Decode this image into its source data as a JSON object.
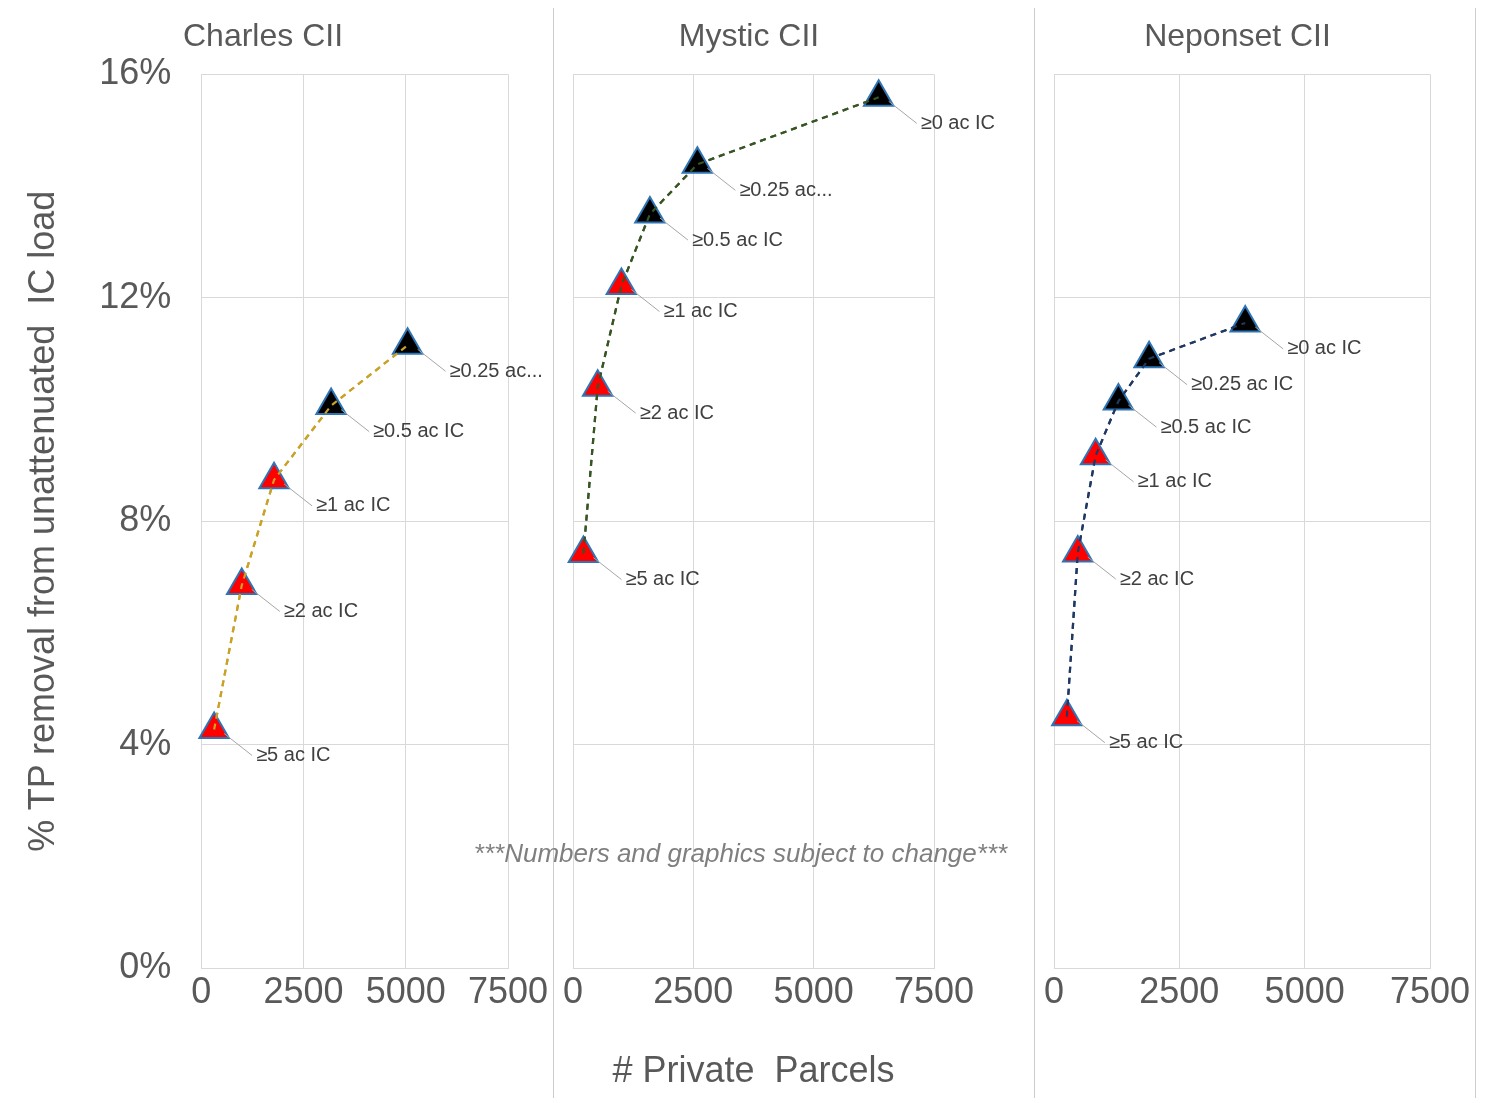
{
  "chart_data": [
    {
      "type": "line",
      "title": "Charles CII",
      "ylabel": "% TP removal from unattenuated  IC load",
      "xlim": [
        0,
        7500
      ],
      "xticks": [
        0,
        2500,
        5000,
        7500
      ],
      "ylim": [
        0,
        16
      ],
      "yticks": [
        {
          "value": 0,
          "label": "0%"
        },
        {
          "value": 4,
          "label": "4%"
        },
        {
          "value": 8,
          "label": "8%"
        },
        {
          "value": 12,
          "label": "12%"
        },
        {
          "value": 16,
          "label": "16%"
        }
      ],
      "grid": true,
      "legend": false,
      "marker": "triangle",
      "line_style": "dashed",
      "series": [
        {
          "color": "#c9a227",
          "colors": [
            "#ff0000",
            "#ff0000",
            "#ff0000",
            "#000000",
            "#000000"
          ],
          "x": [
            315,
            990,
            1780,
            3175,
            5045
          ],
          "values": [
            4.27,
            6.85,
            8.74,
            10.07,
            11.15
          ],
          "value_labels": [
            "≥5 ac IC",
            "≥2 ac IC",
            "≥1 ac IC",
            "≥0.5 ac IC",
            "≥0.25 ac..."
          ]
        }
      ]
    },
    {
      "type": "line",
      "title": "Mystic CII",
      "xlabel": "# Private  Parcels",
      "xlim": [
        0,
        7500
      ],
      "xticks": [
        0,
        2500,
        5000,
        7500
      ],
      "ylim": [
        0,
        16
      ],
      "yticks": [
        0,
        4,
        8,
        12,
        16
      ],
      "tick_labels": "x",
      "grid": true,
      "legend": false,
      "marker": "triangle",
      "line_style": "dashed",
      "annotations": [
        "***Numbers and graphics subject to change***"
      ],
      "series": [
        {
          "color": "#375623",
          "colors": [
            "#ff0000",
            "#ff0000",
            "#ff0000",
            "#000000",
            "#000000",
            "#000000"
          ],
          "x": [
            217,
            513,
            1006,
            1598,
            2584,
            6351
          ],
          "values": [
            7.42,
            10.4,
            12.22,
            13.5,
            14.39,
            15.59
          ],
          "value_labels": [
            "≥5 ac IC",
            "≥2 ac IC",
            "≥1 ac IC",
            "≥0.5 ac IC",
            "≥0.25 ac...",
            "≥0 ac IC"
          ]
        }
      ]
    },
    {
      "type": "line",
      "title": "Neponset CII",
      "xlim": [
        0,
        7500
      ],
      "xticks": [
        0,
        2500,
        5000,
        7500
      ],
      "ylim": [
        0,
        16
      ],
      "yticks": [
        0,
        4,
        8,
        12,
        16
      ],
      "tick_labels": "x",
      "grid": true,
      "legend": false,
      "marker": "triangle",
      "line_style": "dashed",
      "series": [
        {
          "color": "#203864",
          "colors": [
            "#ff0000",
            "#ff0000",
            "#ff0000",
            "#000000",
            "#000000",
            "#000000"
          ],
          "x": [
            257,
            474,
            830,
            1285,
            1897,
            3814
          ],
          "values": [
            4.5,
            7.43,
            9.17,
            10.15,
            10.91,
            11.55
          ],
          "value_labels": [
            "≥5 ac IC",
            "≥2 ac IC",
            "≥1 ac IC",
            "≥0.5 ac IC",
            "≥0.25 ac IC",
            "≥0 ac IC"
          ]
        }
      ]
    }
  ]
}
